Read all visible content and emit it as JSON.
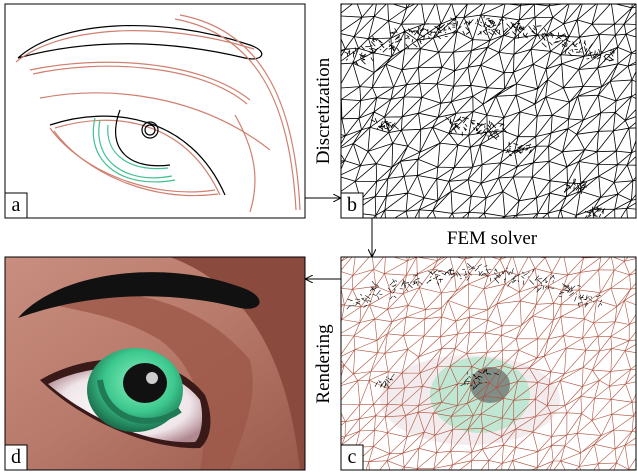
{
  "panels": [
    {
      "label": "a"
    },
    {
      "label": "b"
    },
    {
      "label": "c"
    },
    {
      "label": "d"
    }
  ],
  "steps": [
    {
      "label": "Discretization"
    },
    {
      "label": "FEM solver"
    },
    {
      "label": "Rendering"
    }
  ]
}
